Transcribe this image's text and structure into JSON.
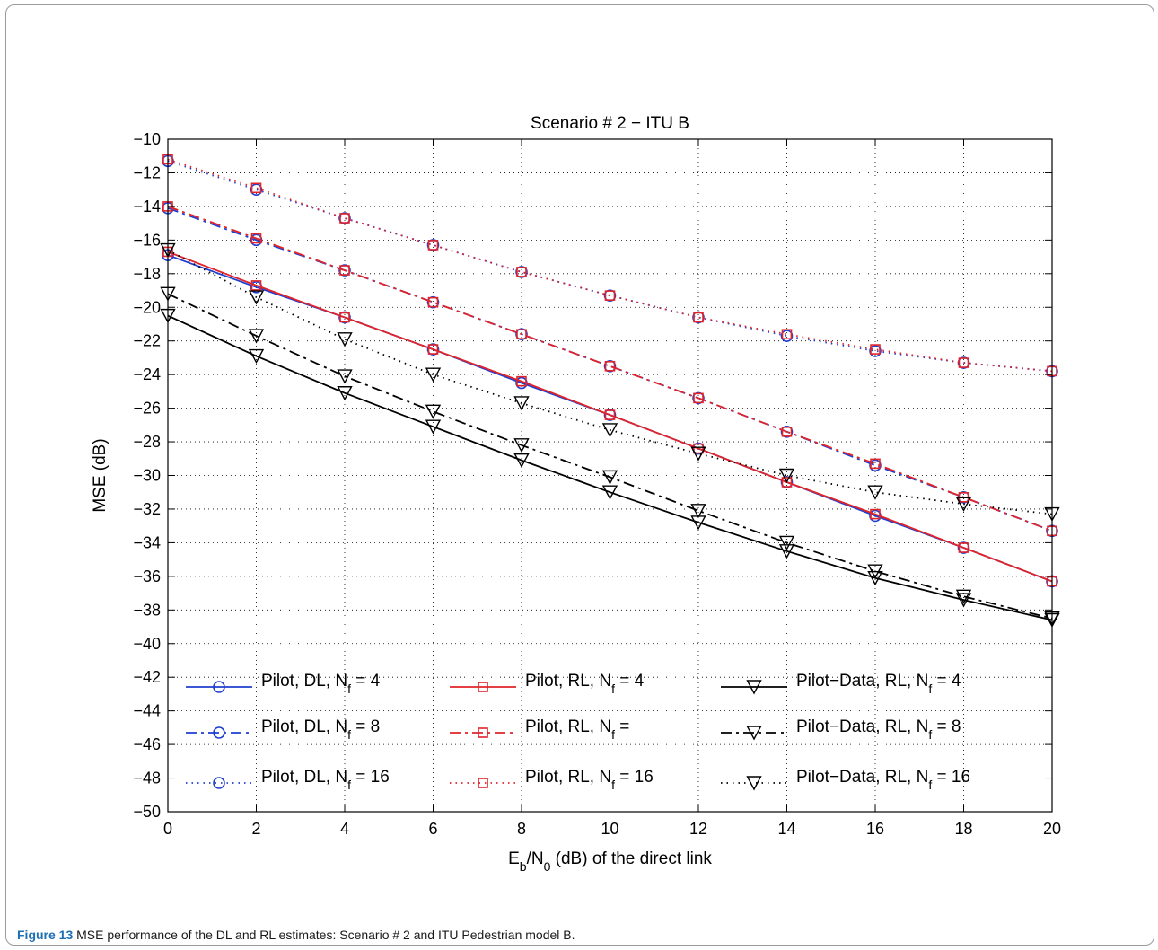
{
  "caption": {
    "label": "Figure 13",
    "text": "MSE performance of the DL and RL estimates: Scenario # 2 and ITU Pedestrian model B."
  },
  "chart_data": {
    "type": "line",
    "title": "Scenario # 2 − ITU B",
    "xlabel": {
      "parts": [
        [
          "E",
          "normal"
        ],
        [
          "b",
          "sub"
        ],
        [
          "/N",
          "normal"
        ],
        [
          "0",
          "sub"
        ],
        [
          " (dB) of the direct link",
          "normal"
        ]
      ]
    },
    "ylabel": "MSE (dB)",
    "xlim": [
      0,
      20
    ],
    "ylim": [
      -50,
      -10
    ],
    "xticks": [
      0,
      2,
      4,
      6,
      8,
      10,
      12,
      14,
      16,
      18,
      20
    ],
    "xtick_labels": [
      "0",
      "2",
      "4",
      "6",
      "8",
      "10",
      "12",
      "14",
      "16",
      "18",
      "20"
    ],
    "yticks": [
      -50,
      -48,
      -46,
      -44,
      -42,
      -40,
      -38,
      -36,
      -34,
      -32,
      -30,
      -28,
      -26,
      -24,
      -22,
      -20,
      -18,
      -16,
      -14,
      -12,
      -10
    ],
    "ytick_labels": [
      "−50",
      "−48",
      "−46",
      "−44",
      "−42",
      "−40",
      "−38",
      "−36",
      "−34",
      "−32",
      "−30",
      "−28",
      "−26",
      "−24",
      "−22",
      "−20",
      "−18",
      "−16",
      "−14",
      "−12",
      "−10"
    ],
    "grid": true,
    "legend_position": "bottom, inside axes, 3 columns",
    "x": [
      0,
      2,
      4,
      6,
      8,
      10,
      12,
      14,
      16,
      18,
      20
    ],
    "series": [
      {
        "name": "Pilot, DL, N_f = 4",
        "legend_parts": [
          [
            "Pilot, DL, N",
            "normal"
          ],
          [
            "f",
            "sub"
          ],
          [
            " = 4",
            "normal"
          ]
        ],
        "color": "#1f3fd0",
        "dash": "solid",
        "marker": "circle",
        "values": [
          -16.9,
          -18.8,
          -20.6,
          -22.5,
          -24.5,
          -26.4,
          -28.4,
          -30.4,
          -32.4,
          -34.3,
          -36.3
        ]
      },
      {
        "name": "Pilot, DL, N_f = 8",
        "legend_parts": [
          [
            "Pilot, DL, N",
            "normal"
          ],
          [
            "f",
            "sub"
          ],
          [
            " = 8",
            "normal"
          ]
        ],
        "color": "#1f3fd0",
        "dash": "dashdot",
        "marker": "circle",
        "values": [
          -14.1,
          -16.0,
          -17.8,
          -19.7,
          -21.6,
          -23.5,
          -25.4,
          -27.4,
          -29.4,
          -31.3,
          -33.3
        ]
      },
      {
        "name": "Pilot, DL, N_f = 16",
        "legend_parts": [
          [
            "Pilot, DL, N",
            "normal"
          ],
          [
            "f",
            "sub"
          ],
          [
            " = 16",
            "normal"
          ]
        ],
        "color": "#1f3fd0",
        "dash": "dotted",
        "marker": "circle",
        "values": [
          -11.3,
          -13.0,
          -14.7,
          -16.3,
          -17.9,
          -19.3,
          -20.6,
          -21.7,
          -22.6,
          -23.3,
          -23.8
        ]
      },
      {
        "name": "Pilot, RL, N_f = 4",
        "legend_parts": [
          [
            "Pilot, RL, N",
            "normal"
          ],
          [
            "f",
            "sub"
          ],
          [
            " = 4",
            "normal"
          ]
        ],
        "color": "#e0242a",
        "dash": "solid",
        "marker": "square",
        "values": [
          -16.7,
          -18.7,
          -20.6,
          -22.5,
          -24.4,
          -26.4,
          -28.4,
          -30.4,
          -32.3,
          -34.3,
          -36.3
        ]
      },
      {
        "name": "Pilot, RL, N_f =",
        "legend_parts": [
          [
            "Pilot, RL, N",
            "normal"
          ],
          [
            "f",
            "sub"
          ],
          [
            " =",
            "normal"
          ]
        ],
        "color": "#e0242a",
        "dash": "dashdot",
        "marker": "square",
        "values": [
          -14.0,
          -15.9,
          -17.8,
          -19.7,
          -21.6,
          -23.5,
          -25.4,
          -27.4,
          -29.3,
          -31.3,
          -33.3
        ]
      },
      {
        "name": "Pilot, RL, N_f = 16",
        "legend_parts": [
          [
            "Pilot, RL, N",
            "normal"
          ],
          [
            "f",
            "sub"
          ],
          [
            " = 16",
            "normal"
          ]
        ],
        "color": "#e0242a",
        "dash": "dotted",
        "marker": "square",
        "values": [
          -11.2,
          -12.9,
          -14.7,
          -16.3,
          -17.9,
          -19.3,
          -20.6,
          -21.6,
          -22.5,
          -23.3,
          -23.8
        ]
      },
      {
        "name": "Pilot−Data, RL, N_f = 4",
        "legend_parts": [
          [
            "Pilot−Data, RL, N",
            "normal"
          ],
          [
            "f",
            "sub"
          ],
          [
            " = 4",
            "normal"
          ]
        ],
        "color": "#000000",
        "dash": "solid",
        "marker": "triangle-down",
        "values": [
          -20.5,
          -22.9,
          -25.1,
          -27.1,
          -29.1,
          -31.0,
          -32.8,
          -34.5,
          -36.1,
          -37.4,
          -38.6
        ]
      },
      {
        "name": "Pilot−Data, RL, N_f = 8",
        "legend_parts": [
          [
            "Pilot−Data, RL, N",
            "normal"
          ],
          [
            "f",
            "sub"
          ],
          [
            " = 8",
            "normal"
          ]
        ],
        "color": "#000000",
        "dash": "dashdot",
        "marker": "triangle-down",
        "values": [
          -19.2,
          -21.7,
          -24.1,
          -26.2,
          -28.2,
          -30.1,
          -32.1,
          -34.0,
          -35.7,
          -37.2,
          -38.5
        ]
      },
      {
        "name": "Pilot−Data, RL, N_f = 16",
        "legend_parts": [
          [
            "Pilot−Data, RL, N",
            "normal"
          ],
          [
            "f",
            "sub"
          ],
          [
            " = 16",
            "normal"
          ]
        ],
        "color": "#000000",
        "dash": "dotted",
        "marker": "triangle-down",
        "values": [
          -16.6,
          -19.4,
          -21.9,
          -24.0,
          -25.7,
          -27.3,
          -28.7,
          -30.0,
          -31.0,
          -31.7,
          -32.3
        ]
      }
    ]
  }
}
